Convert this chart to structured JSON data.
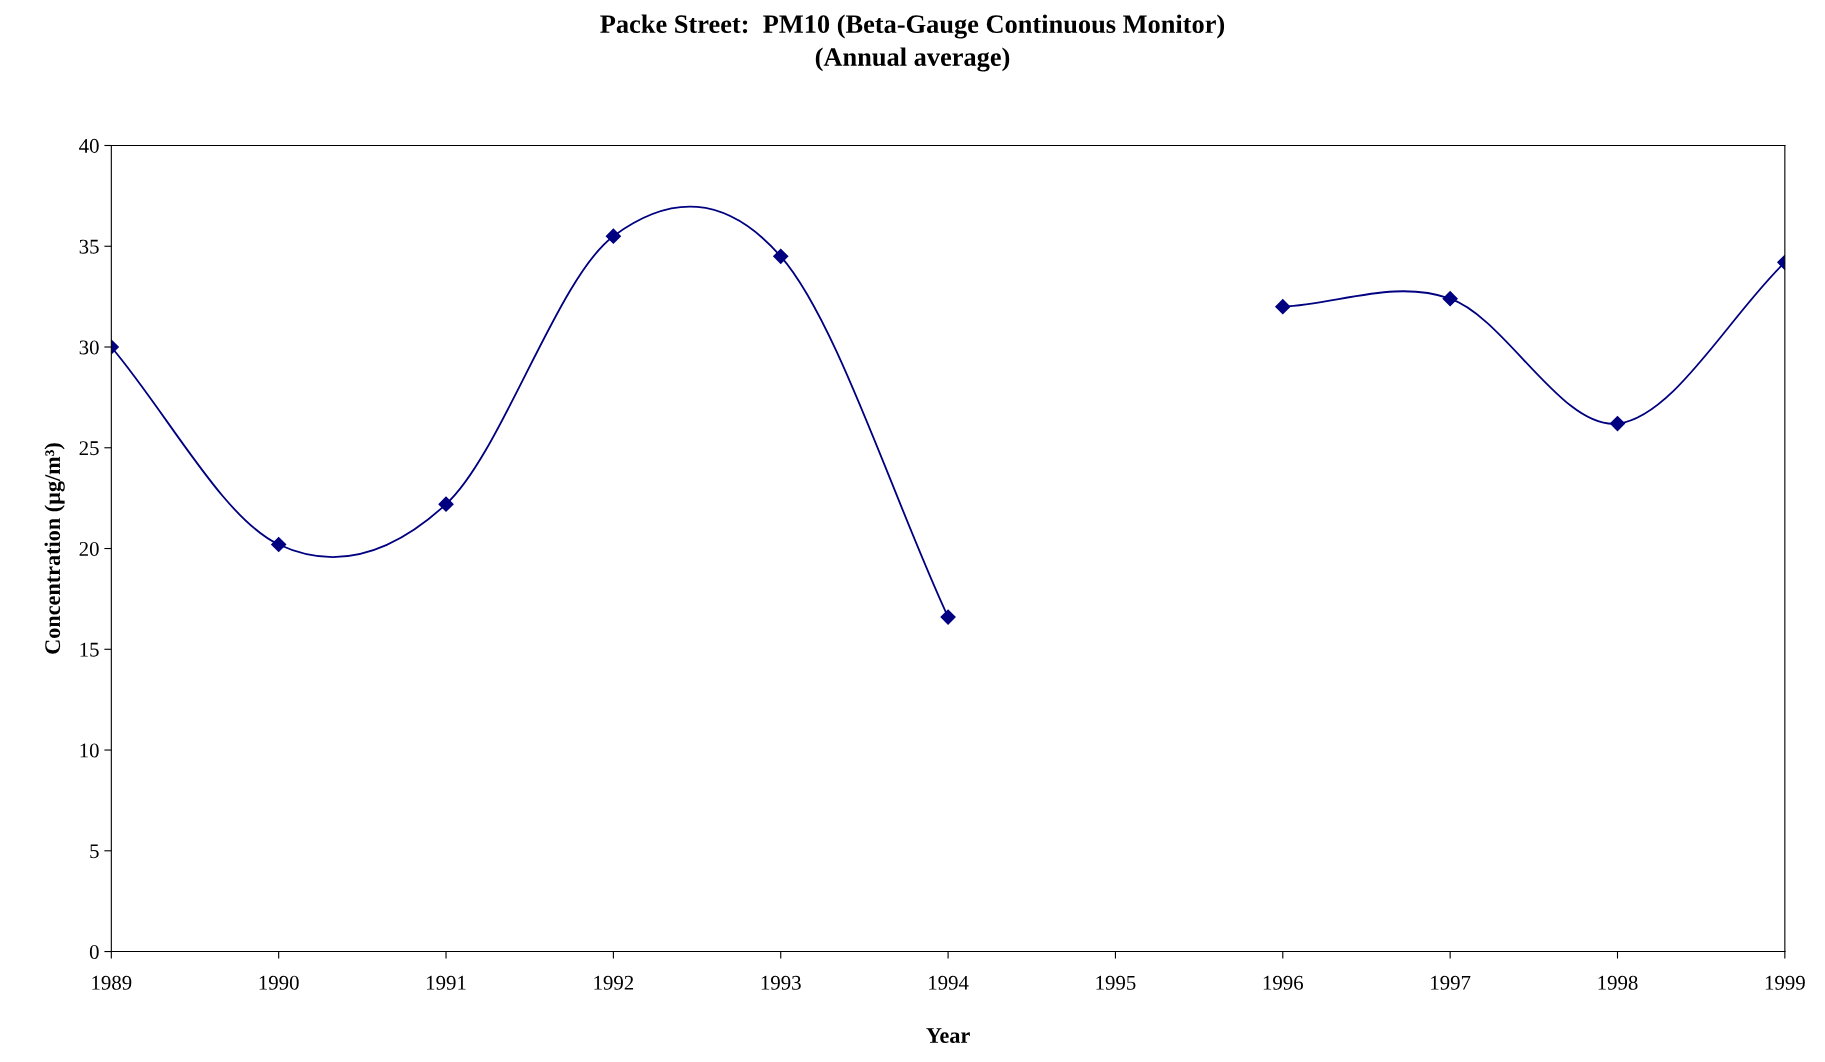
{
  "chart_data": {
    "type": "line",
    "title": "Packe Street:  PM10 (Beta-Gauge Continuous Monitor)",
    "subtitle": "(Annual average)",
    "xlabel": "Year",
    "ylabel": "Concentration (µg/m³)",
    "x": [
      1989,
      1990,
      1991,
      1992,
      1993,
      1994,
      1995,
      1996,
      1997,
      1998,
      1999
    ],
    "series": [
      {
        "color": "#000080",
        "values": [
          30,
          20.2,
          22.2,
          35.5,
          34.5,
          16.6,
          null,
          null,
          null,
          null,
          null
        ]
      },
      {
        "color": "#000080",
        "values": [
          null,
          null,
          null,
          null,
          null,
          null,
          null,
          32,
          32.4,
          26.2,
          34.2
        ]
      }
    ],
    "xlim": [
      1989,
      1999
    ],
    "xticks": [
      1989,
      1990,
      1991,
      1992,
      1993,
      1994,
      1995,
      1996,
      1997,
      1998,
      1999
    ],
    "ylim": [
      0,
      40
    ],
    "yticks": [
      0,
      5,
      10,
      15,
      20,
      25,
      30,
      35,
      40
    ],
    "grid": false,
    "marker": "diamond",
    "line_style": "solid"
  }
}
